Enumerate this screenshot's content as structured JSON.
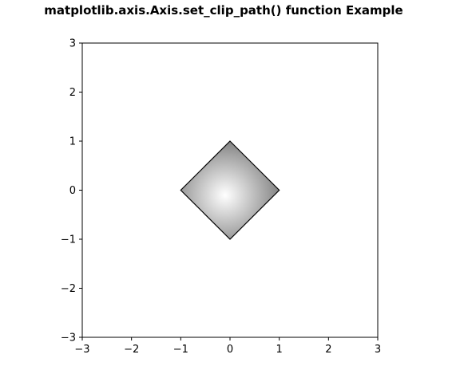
{
  "chart_data": {
    "type": "scatter",
    "title": "matplotlib.axis.Axis.set_clip_path() function Example",
    "xlabel": "",
    "ylabel": "",
    "xlim": [
      -3,
      3
    ],
    "ylim": [
      -3,
      3
    ],
    "x_ticks": [
      -3,
      -2,
      -1,
      0,
      1,
      2,
      3
    ],
    "y_ticks": [
      -3,
      -2,
      -1,
      0,
      1,
      2,
      3
    ],
    "x_tick_labels": [
      "−3",
      "−2",
      "−1",
      "0",
      "1",
      "2",
      "3"
    ],
    "y_tick_labels": [
      "−3",
      "−2",
      "−1",
      "0",
      "1",
      "2",
      "3"
    ],
    "grid": false,
    "shapes": [
      {
        "kind": "diamond",
        "vertices": [
          [
            0,
            1
          ],
          [
            1,
            0
          ],
          [
            0,
            -1
          ],
          [
            -1,
            0
          ]
        ],
        "fill": "radial gray gradient",
        "edge_color": "#000000",
        "gradient_center": [
          -0.1,
          -0.1
        ],
        "colors": {
          "inner": "#ffffff",
          "outer": "#8a8a8a"
        }
      }
    ]
  }
}
